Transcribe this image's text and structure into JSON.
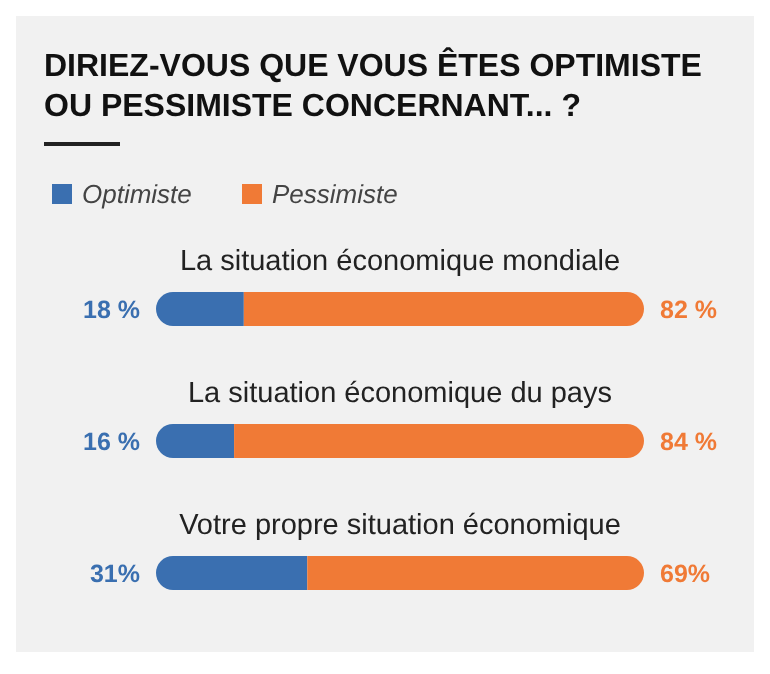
{
  "chart_data": {
    "type": "bar",
    "orientation": "horizontal",
    "stacked": true,
    "title": "DIRIEZ-VOUS QUE VOUS ÊTES OPTIMISTE OU PESSIMISTE CONCERNANT... ?",
    "categories": [
      "La situation économique mondiale",
      "La situation économique du pays",
      "Votre propre situation économique"
    ],
    "series": [
      {
        "name": "Optimiste",
        "color": "#3a6fb0",
        "values": [
          18,
          16,
          31
        ],
        "value_labels": [
          "18 %",
          "16 %",
          "31%"
        ]
      },
      {
        "name": "Pessimiste",
        "color": "#f07a36",
        "values": [
          82,
          84,
          69
        ],
        "value_labels": [
          "82 %",
          "84 %",
          "69%"
        ]
      }
    ],
    "legend": "top left"
  }
}
